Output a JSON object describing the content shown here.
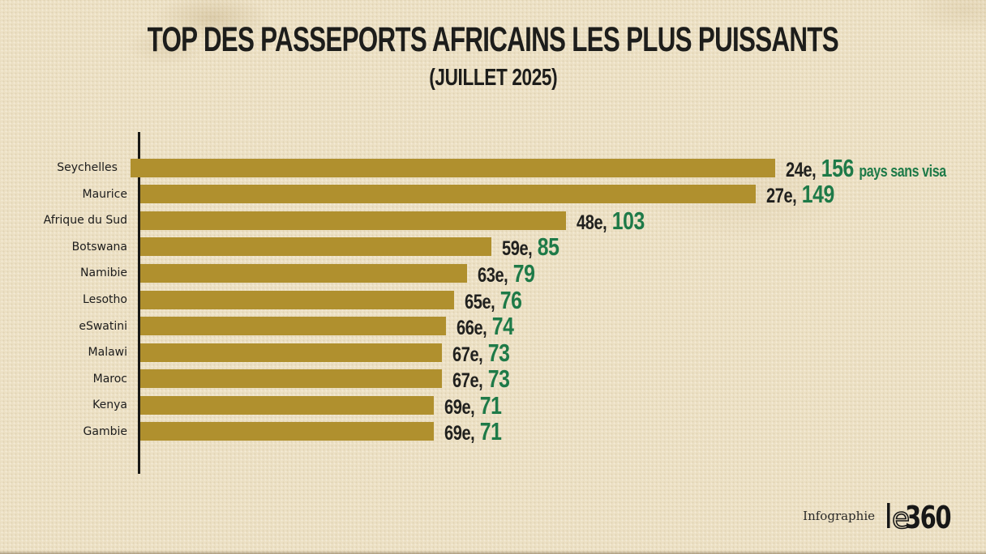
{
  "header": {
    "title": "TOP DES PASSEPORTS AFRICAINS LES PLUS PUISSANTS",
    "subtitle": "(JUILLET 2025)"
  },
  "chart_data": {
    "type": "bar",
    "orientation": "horizontal",
    "title": "TOP DES PASSEPORTS AFRICAINS LES PLUS PUISSANTS",
    "subtitle": "(JUILLET 2025)",
    "categories": [
      "Seychelles",
      "Maurice",
      "Afrique du Sud",
      "Botswana",
      "Namibie",
      "Lesotho",
      "eSwatini",
      "Malawi",
      "Maroc",
      "Kenya",
      "Gambie"
    ],
    "values": [
      156,
      149,
      103,
      85,
      79,
      76,
      74,
      73,
      73,
      71,
      71
    ],
    "ranks": [
      "24e",
      "27e",
      "48e",
      "59e",
      "63e",
      "65e",
      "66e",
      "67e",
      "67e",
      "69e",
      "69e"
    ],
    "rank_separator": ", ",
    "unit_label": "pays sans visa",
    "unit_label_row": 0,
    "xlim": [
      0,
      156
    ],
    "grid": false,
    "legend": false,
    "colors": {
      "bar": "#b0902e",
      "value": "#1e7a48",
      "rank": "#20201e",
      "axis": "#181816",
      "background": "#ece0c4"
    }
  },
  "footer": {
    "credit": "Infographie",
    "logo_l": "l",
    "logo_e": "e",
    "logo_360": "360"
  }
}
